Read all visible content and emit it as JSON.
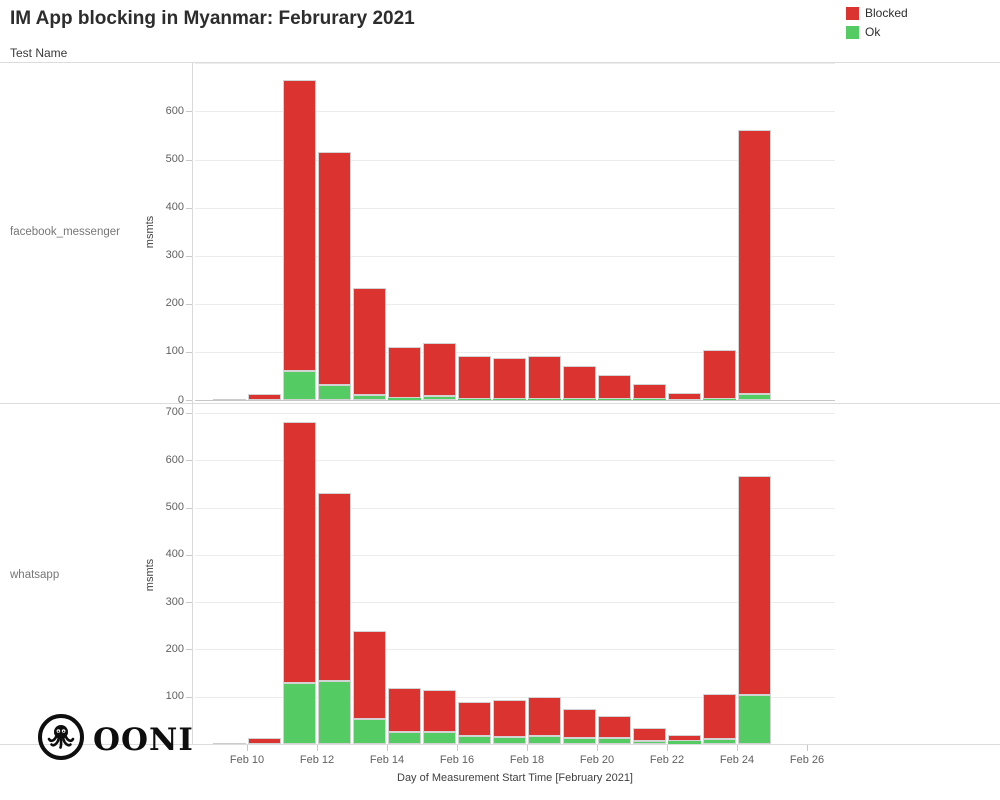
{
  "header": {
    "title": "IM App blocking in Myanmar: Februrary 2021",
    "facet_axis_title": "Test Name"
  },
  "legend": {
    "items": [
      {
        "label": "Blocked",
        "key": "blocked",
        "color": "#db3330"
      },
      {
        "label": "Ok",
        "key": "ok",
        "color": "#54cb63"
      }
    ]
  },
  "x_axis": {
    "title": "Day of Measurement Start Time [February 2021]",
    "tick_labels": [
      "Feb 10",
      "Feb 12",
      "Feb 14",
      "Feb 16",
      "Feb 18",
      "Feb 20",
      "Feb 22",
      "Feb 24",
      "Feb 26"
    ]
  },
  "y_axis": {
    "unit_label": "msmts"
  },
  "footer": {
    "logo_text": "OONI"
  },
  "chart_data": {
    "type": "bar",
    "stacked": true,
    "grid": true,
    "legend_position": "top-right",
    "series_colors": {
      "blocked": "#db3330",
      "ok": "#54cb63",
      "other": "#cccccc"
    },
    "stack_order_bottom_to_top": [
      "other",
      "ok",
      "blocked"
    ],
    "facets": [
      {
        "test_name": "facebook_messenger",
        "ylabel": "msmts",
        "ylim": [
          0,
          700
        ],
        "y_ticks": [
          0,
          100,
          200,
          300,
          400,
          500,
          600
        ],
        "values": [
          {
            "date": "Feb 9",
            "blocked": 0,
            "ok": 0,
            "other": 2
          },
          {
            "date": "Feb 10",
            "blocked": 12,
            "ok": 0,
            "other": 0
          },
          {
            "date": "Feb 11",
            "blocked": 605,
            "ok": 60,
            "other": 0
          },
          {
            "date": "Feb 12",
            "blocked": 483,
            "ok": 32,
            "other": 0
          },
          {
            "date": "Feb 13",
            "blocked": 223,
            "ok": 10,
            "other": 0
          },
          {
            "date": "Feb 14",
            "blocked": 106,
            "ok": 4,
            "other": 0
          },
          {
            "date": "Feb 15",
            "blocked": 110,
            "ok": 8,
            "other": 0
          },
          {
            "date": "Feb 16",
            "blocked": 88,
            "ok": 3,
            "other": 0
          },
          {
            "date": "Feb 17",
            "blocked": 85,
            "ok": 3,
            "other": 0
          },
          {
            "date": "Feb 18",
            "blocked": 89,
            "ok": 3,
            "other": 0
          },
          {
            "date": "Feb 19",
            "blocked": 68,
            "ok": 3,
            "other": 0
          },
          {
            "date": "Feb 20",
            "blocked": 48,
            "ok": 3,
            "other": 0
          },
          {
            "date": "Feb 21",
            "blocked": 31,
            "ok": 2,
            "other": 0
          },
          {
            "date": "Feb 22",
            "blocked": 13,
            "ok": 1,
            "other": 0
          },
          {
            "date": "Feb 23",
            "blocked": 102,
            "ok": 2,
            "other": 0
          },
          {
            "date": "Feb 24",
            "blocked": 550,
            "ok": 12,
            "other": 0
          }
        ]
      },
      {
        "test_name": "whatsapp",
        "ylabel": "msmts",
        "ylim": [
          0,
          700
        ],
        "y_ticks": [
          100,
          200,
          300,
          400,
          500,
          600,
          700
        ],
        "values": [
          {
            "date": "Feb 9",
            "blocked": 0,
            "ok": 0,
            "other": 2
          },
          {
            "date": "Feb 10",
            "blocked": 13,
            "ok": 0,
            "other": 0
          },
          {
            "date": "Feb 11",
            "blocked": 551,
            "ok": 129,
            "other": 0
          },
          {
            "date": "Feb 12",
            "blocked": 397,
            "ok": 133,
            "other": 0
          },
          {
            "date": "Feb 13",
            "blocked": 185,
            "ok": 53,
            "other": 0
          },
          {
            "date": "Feb 14",
            "blocked": 92,
            "ok": 26,
            "other": 0
          },
          {
            "date": "Feb 15",
            "blocked": 89,
            "ok": 25,
            "other": 0
          },
          {
            "date": "Feb 16",
            "blocked": 72,
            "ok": 16,
            "other": 0
          },
          {
            "date": "Feb 17",
            "blocked": 77,
            "ok": 15,
            "other": 0
          },
          {
            "date": "Feb 18",
            "blocked": 82,
            "ok": 17,
            "other": 0
          },
          {
            "date": "Feb 19",
            "blocked": 62,
            "ok": 13,
            "other": 0
          },
          {
            "date": "Feb 20",
            "blocked": 47,
            "ok": 13,
            "other": 0
          },
          {
            "date": "Feb 21",
            "blocked": 27,
            "ok": 7,
            "other": 0
          },
          {
            "date": "Feb 22",
            "blocked": 13,
            "ok": 6,
            "other": 0
          },
          {
            "date": "Feb 23",
            "blocked": 95,
            "ok": 10,
            "other": 0
          },
          {
            "date": "Feb 24",
            "blocked": 464,
            "ok": 103,
            "other": 0
          }
        ]
      }
    ]
  }
}
